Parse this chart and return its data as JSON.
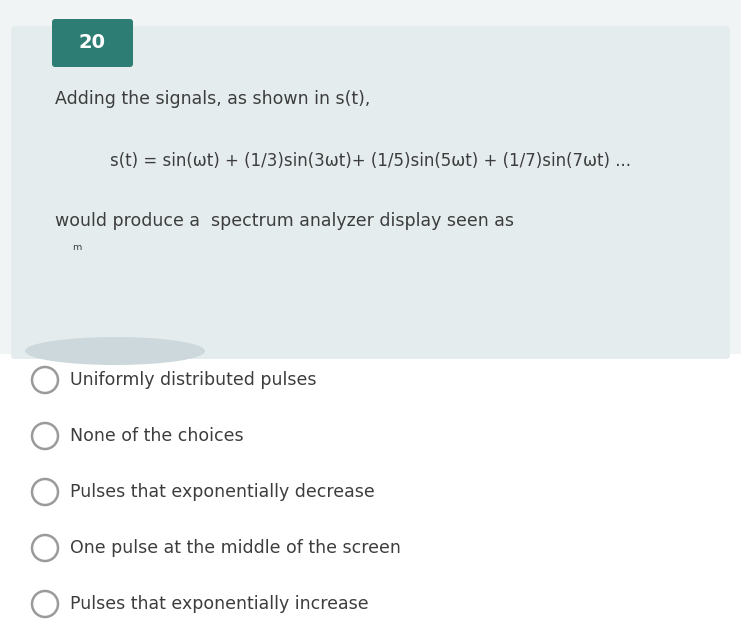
{
  "question_number": "20",
  "question_number_bg": "#2e7d74",
  "question_number_color": "#ffffff",
  "question_box_bg": "#e4ecee",
  "page_bg": "#f0f4f5",
  "white_bg": "#ffffff",
  "text_color": "#3d3d3d",
  "line1": "Adding the signals, as shown in s(t),",
  "line2": "s(t) = sin(ωt) + (1/3)sin(3ωt)+ (1/5)sin(5ωt) + (1/7)sin(7ωt) ...",
  "line3": "would produce a  spectrum analyzer display seen as",
  "line4": "ᵐ",
  "choices": [
    "Uniformly distributed pulses",
    "None of the choices",
    "Pulses that exponentially decrease",
    "One pulse at the middle of the screen",
    "Pulses that exponentially increase"
  ],
  "circle_color": "#9a9a9a",
  "circle_lw": 1.8,
  "figsize": [
    7.41,
    6.29
  ],
  "dpi": 100
}
